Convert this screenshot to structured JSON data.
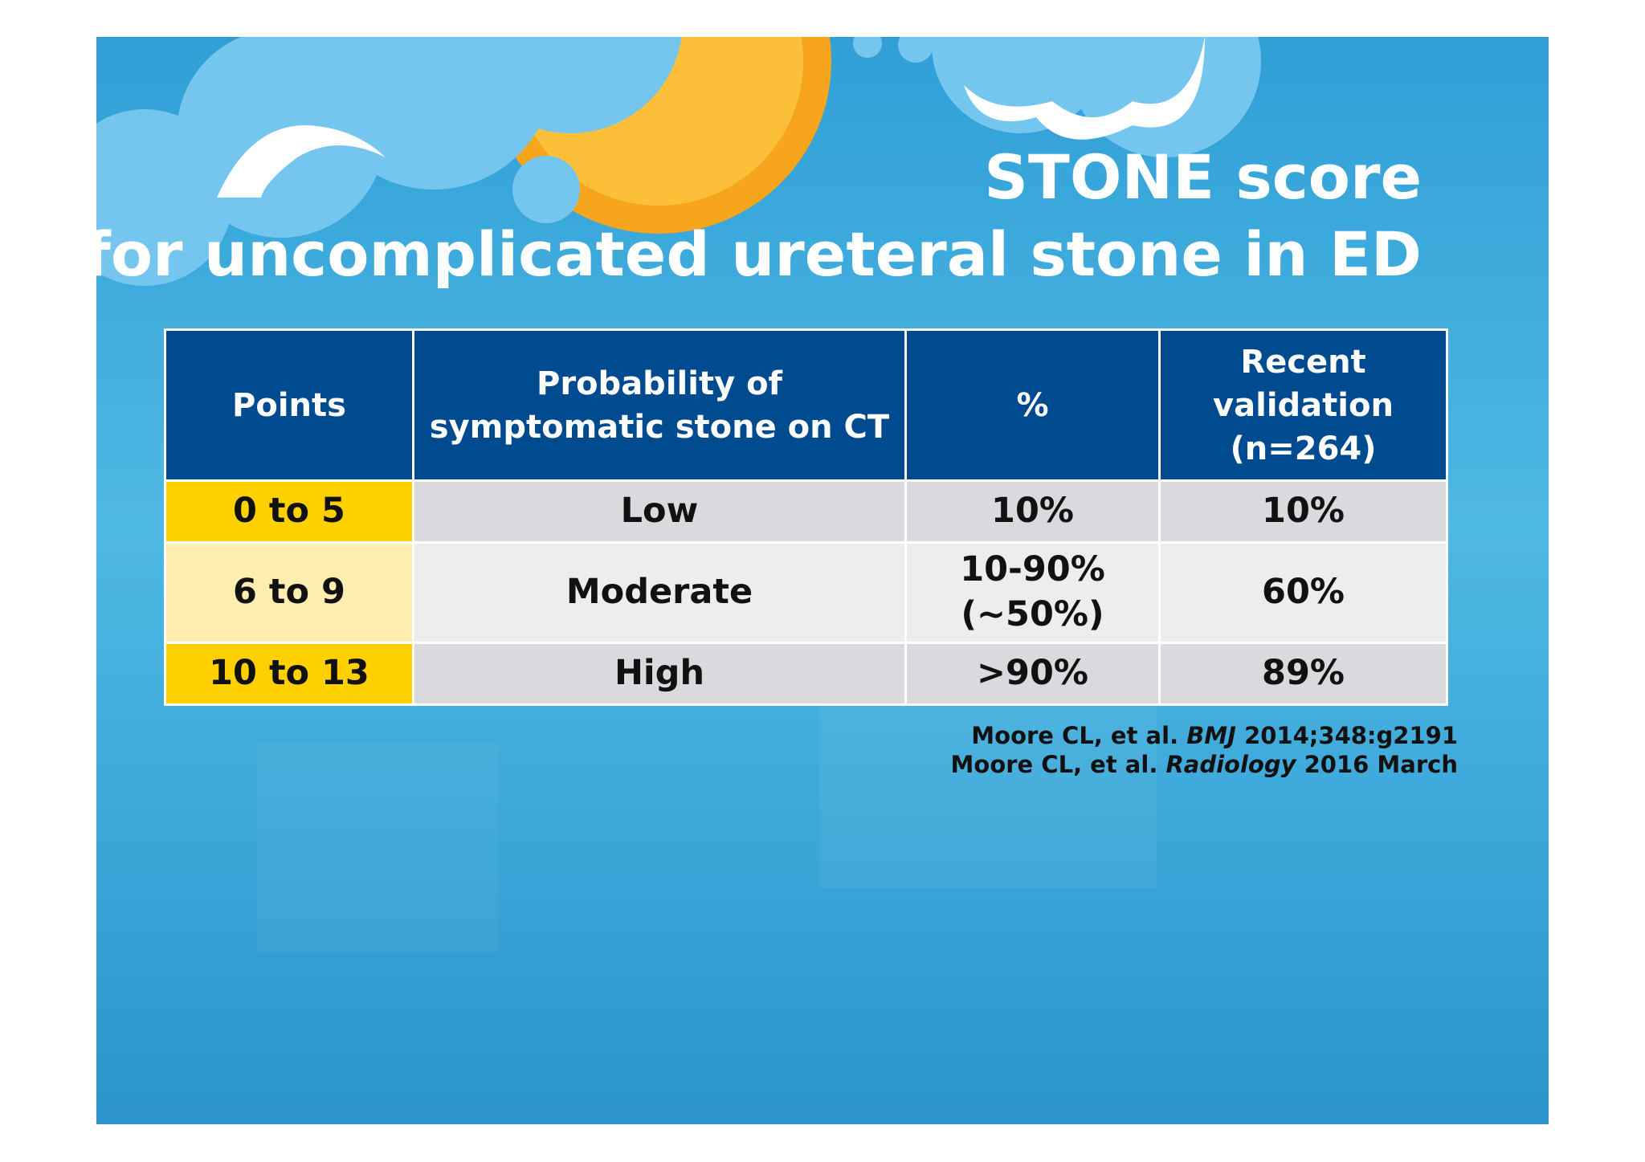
{
  "title": {
    "line1": "STONE score",
    "line2": "for uncomplicated ureteral stone in ED"
  },
  "table": {
    "header": [
      [
        "Points"
      ],
      [
        "Probability of",
        "symptomatic stone on CT"
      ],
      [
        "%"
      ],
      [
        "Recent",
        "validation",
        "(n=264)"
      ]
    ],
    "rows": [
      [
        [
          "0 to 5"
        ],
        [
          "Low"
        ],
        [
          "10%"
        ],
        [
          "10%"
        ]
      ],
      [
        [
          "6 to 9"
        ],
        [
          "Moderate"
        ],
        [
          "10-90%",
          "(~50%)"
        ],
        [
          "60%"
        ]
      ],
      [
        [
          "10 to 13"
        ],
        [
          "High"
        ],
        [
          ">90%"
        ],
        [
          "89%"
        ]
      ]
    ]
  },
  "references": [
    {
      "author": "Moore CL, et al.",
      "journal": "BMJ",
      "detail": "2014;348:g2191"
    },
    {
      "author": "Moore CL, et al.",
      "journal": "Radiology",
      "detail": "2016 March"
    }
  ]
}
